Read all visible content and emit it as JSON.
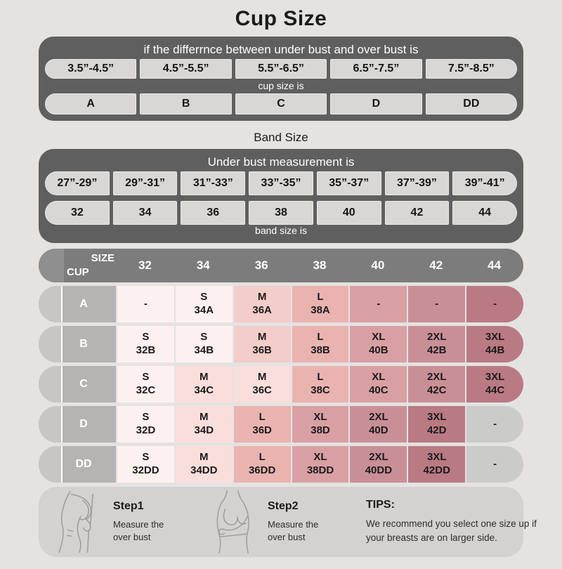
{
  "page": {
    "title": "Cup Size"
  },
  "cup_table": {
    "header": "if the differrnce between under bust and over bust is",
    "ranges": [
      "3.5”-4.5”",
      "4.5”-5.5”",
      "5.5”-6.5”",
      "6.5”-7.5”",
      "7.5”-8.5”"
    ],
    "mid_label": "cup size is",
    "cups": [
      "A",
      "B",
      "C",
      "D",
      "DD"
    ]
  },
  "band_section": {
    "title": "Band Size",
    "header": "Under bust measurement is",
    "ranges": [
      "27”-29”",
      "29”-31”",
      "31”-33”",
      "33”-35”",
      "35”-37”",
      "37”-39”",
      "39”-41”"
    ],
    "sizes": [
      "32",
      "34",
      "36",
      "38",
      "40",
      "42",
      "44"
    ],
    "footer": "band size is"
  },
  "matrix": {
    "corner": {
      "size_label": "SIZE",
      "cup_label": "CUP"
    },
    "columns": [
      "32",
      "34",
      "36",
      "38",
      "40",
      "42",
      "44"
    ],
    "rows": [
      {
        "cup": "A",
        "cells": [
          {
            "size": "-",
            "code": "",
            "tone": "s"
          },
          {
            "size": "S",
            "code": "34A",
            "tone": "s"
          },
          {
            "size": "M",
            "code": "36A",
            "tone": "m2"
          },
          {
            "size": "L",
            "code": "38A",
            "tone": "l"
          },
          {
            "size": "-",
            "code": "",
            "tone": "xl"
          },
          {
            "size": "-",
            "code": "",
            "tone": "x2"
          },
          {
            "size": "-",
            "code": "",
            "tone": "x3"
          }
        ]
      },
      {
        "cup": "B",
        "cells": [
          {
            "size": "S",
            "code": "32B",
            "tone": "s"
          },
          {
            "size": "S",
            "code": "34B",
            "tone": "s"
          },
          {
            "size": "M",
            "code": "36B",
            "tone": "m2"
          },
          {
            "size": "L",
            "code": "38B",
            "tone": "l"
          },
          {
            "size": "XL",
            "code": "40B",
            "tone": "xl"
          },
          {
            "size": "2XL",
            "code": "42B",
            "tone": "x2"
          },
          {
            "size": "3XL",
            "code": "44B",
            "tone": "x3"
          }
        ]
      },
      {
        "cup": "C",
        "cells": [
          {
            "size": "S",
            "code": "32C",
            "tone": "s"
          },
          {
            "size": "M",
            "code": "34C",
            "tone": "m"
          },
          {
            "size": "M",
            "code": "36C",
            "tone": "m"
          },
          {
            "size": "L",
            "code": "38C",
            "tone": "l"
          },
          {
            "size": "XL",
            "code": "40C",
            "tone": "xl"
          },
          {
            "size": "2XL",
            "code": "42C",
            "tone": "x2"
          },
          {
            "size": "3XL",
            "code": "44C",
            "tone": "x3"
          }
        ]
      },
      {
        "cup": "D",
        "cells": [
          {
            "size": "S",
            "code": "32D",
            "tone": "s"
          },
          {
            "size": "M",
            "code": "34D",
            "tone": "m"
          },
          {
            "size": "L",
            "code": "36D",
            "tone": "l"
          },
          {
            "size": "XL",
            "code": "38D",
            "tone": "xl"
          },
          {
            "size": "2XL",
            "code": "40D",
            "tone": "x2"
          },
          {
            "size": "3XL",
            "code": "42D",
            "tone": "x3"
          },
          {
            "size": "-",
            "code": "",
            "tone": "gray"
          }
        ]
      },
      {
        "cup": "DD",
        "cells": [
          {
            "size": "S",
            "code": "32DD",
            "tone": "s"
          },
          {
            "size": "M",
            "code": "34DD",
            "tone": "m"
          },
          {
            "size": "L",
            "code": "36DD",
            "tone": "l"
          },
          {
            "size": "XL",
            "code": "38DD",
            "tone": "xl"
          },
          {
            "size": "2XL",
            "code": "40DD",
            "tone": "x2"
          },
          {
            "size": "3XL",
            "code": "42DD",
            "tone": "x3"
          },
          {
            "size": "-",
            "code": "",
            "tone": "gray"
          }
        ]
      }
    ]
  },
  "footer": {
    "step1": {
      "title": "Step1",
      "desc": "Measure the over bust"
    },
    "step2": {
      "title": "Step2",
      "desc": "Measure the over bust"
    },
    "tips": {
      "title": "TIPS:",
      "desc": "We recommend you select one size up if your breasts are on larger side."
    }
  },
  "colors": {
    "page_bg": "#e4e3e1",
    "panel_dark": "#5f5f5f",
    "pill_bg": "#d8d7d5",
    "header_bar": "#7d7c7c",
    "header_cap": "#908f8f",
    "row_label": "#b5b4b3",
    "row_label_cap": "#c7c6c5",
    "footer_box": "#d3d2d0",
    "tones": {
      "s": "#fdf1ef",
      "m": "#f9dedb",
      "m2": "#f3cdc9",
      "l": "#e9b3b0",
      "xl": "#d9a0a3",
      "x2": "#c98f97",
      "x3": "#ba7a83",
      "gray": "#cbcbca"
    }
  },
  "chart_data": [
    {
      "type": "table",
      "title": "Cup Size",
      "headers": [
        "3.5”-4.5”",
        "4.5”-5.5”",
        "5.5”-6.5”",
        "6.5”-7.5”",
        "7.5”-8.5”"
      ],
      "values": [
        "A",
        "B",
        "C",
        "D",
        "DD"
      ],
      "note": "difference between under bust and over bust → cup size"
    },
    {
      "type": "table",
      "title": "Band Size",
      "headers": [
        "27”-29”",
        "29”-31”",
        "31”-33”",
        "33”-35”",
        "35”-37”",
        "37”-39”",
        "39”-41”"
      ],
      "values": [
        "32",
        "34",
        "36",
        "38",
        "40",
        "42",
        "44"
      ],
      "note": "under bust measurement → band size"
    },
    {
      "type": "table",
      "title": "Size / Cup matrix",
      "columns": [
        "32",
        "34",
        "36",
        "38",
        "40",
        "42",
        "44"
      ],
      "row_labels": [
        "A",
        "B",
        "C",
        "D",
        "DD"
      ],
      "cells": [
        [
          "-",
          "S 34A",
          "M 36A",
          "L 38A",
          "-",
          "-",
          "-"
        ],
        [
          "S 32B",
          "S 34B",
          "M 36B",
          "L 38B",
          "XL 40B",
          "2XL 42B",
          "3XL 44B"
        ],
        [
          "S 32C",
          "M 34C",
          "M 36C",
          "L 38C",
          "XL 40C",
          "2XL 42C",
          "3XL 44C"
        ],
        [
          "S 32D",
          "M 34D",
          "L 36D",
          "XL 38D",
          "2XL 40D",
          "3XL 42D",
          "-"
        ],
        [
          "S 32DD",
          "M 34DD",
          "L 36DD",
          "XL 38DD",
          "2XL 40DD",
          "3XL 42DD",
          "-"
        ]
      ]
    }
  ]
}
